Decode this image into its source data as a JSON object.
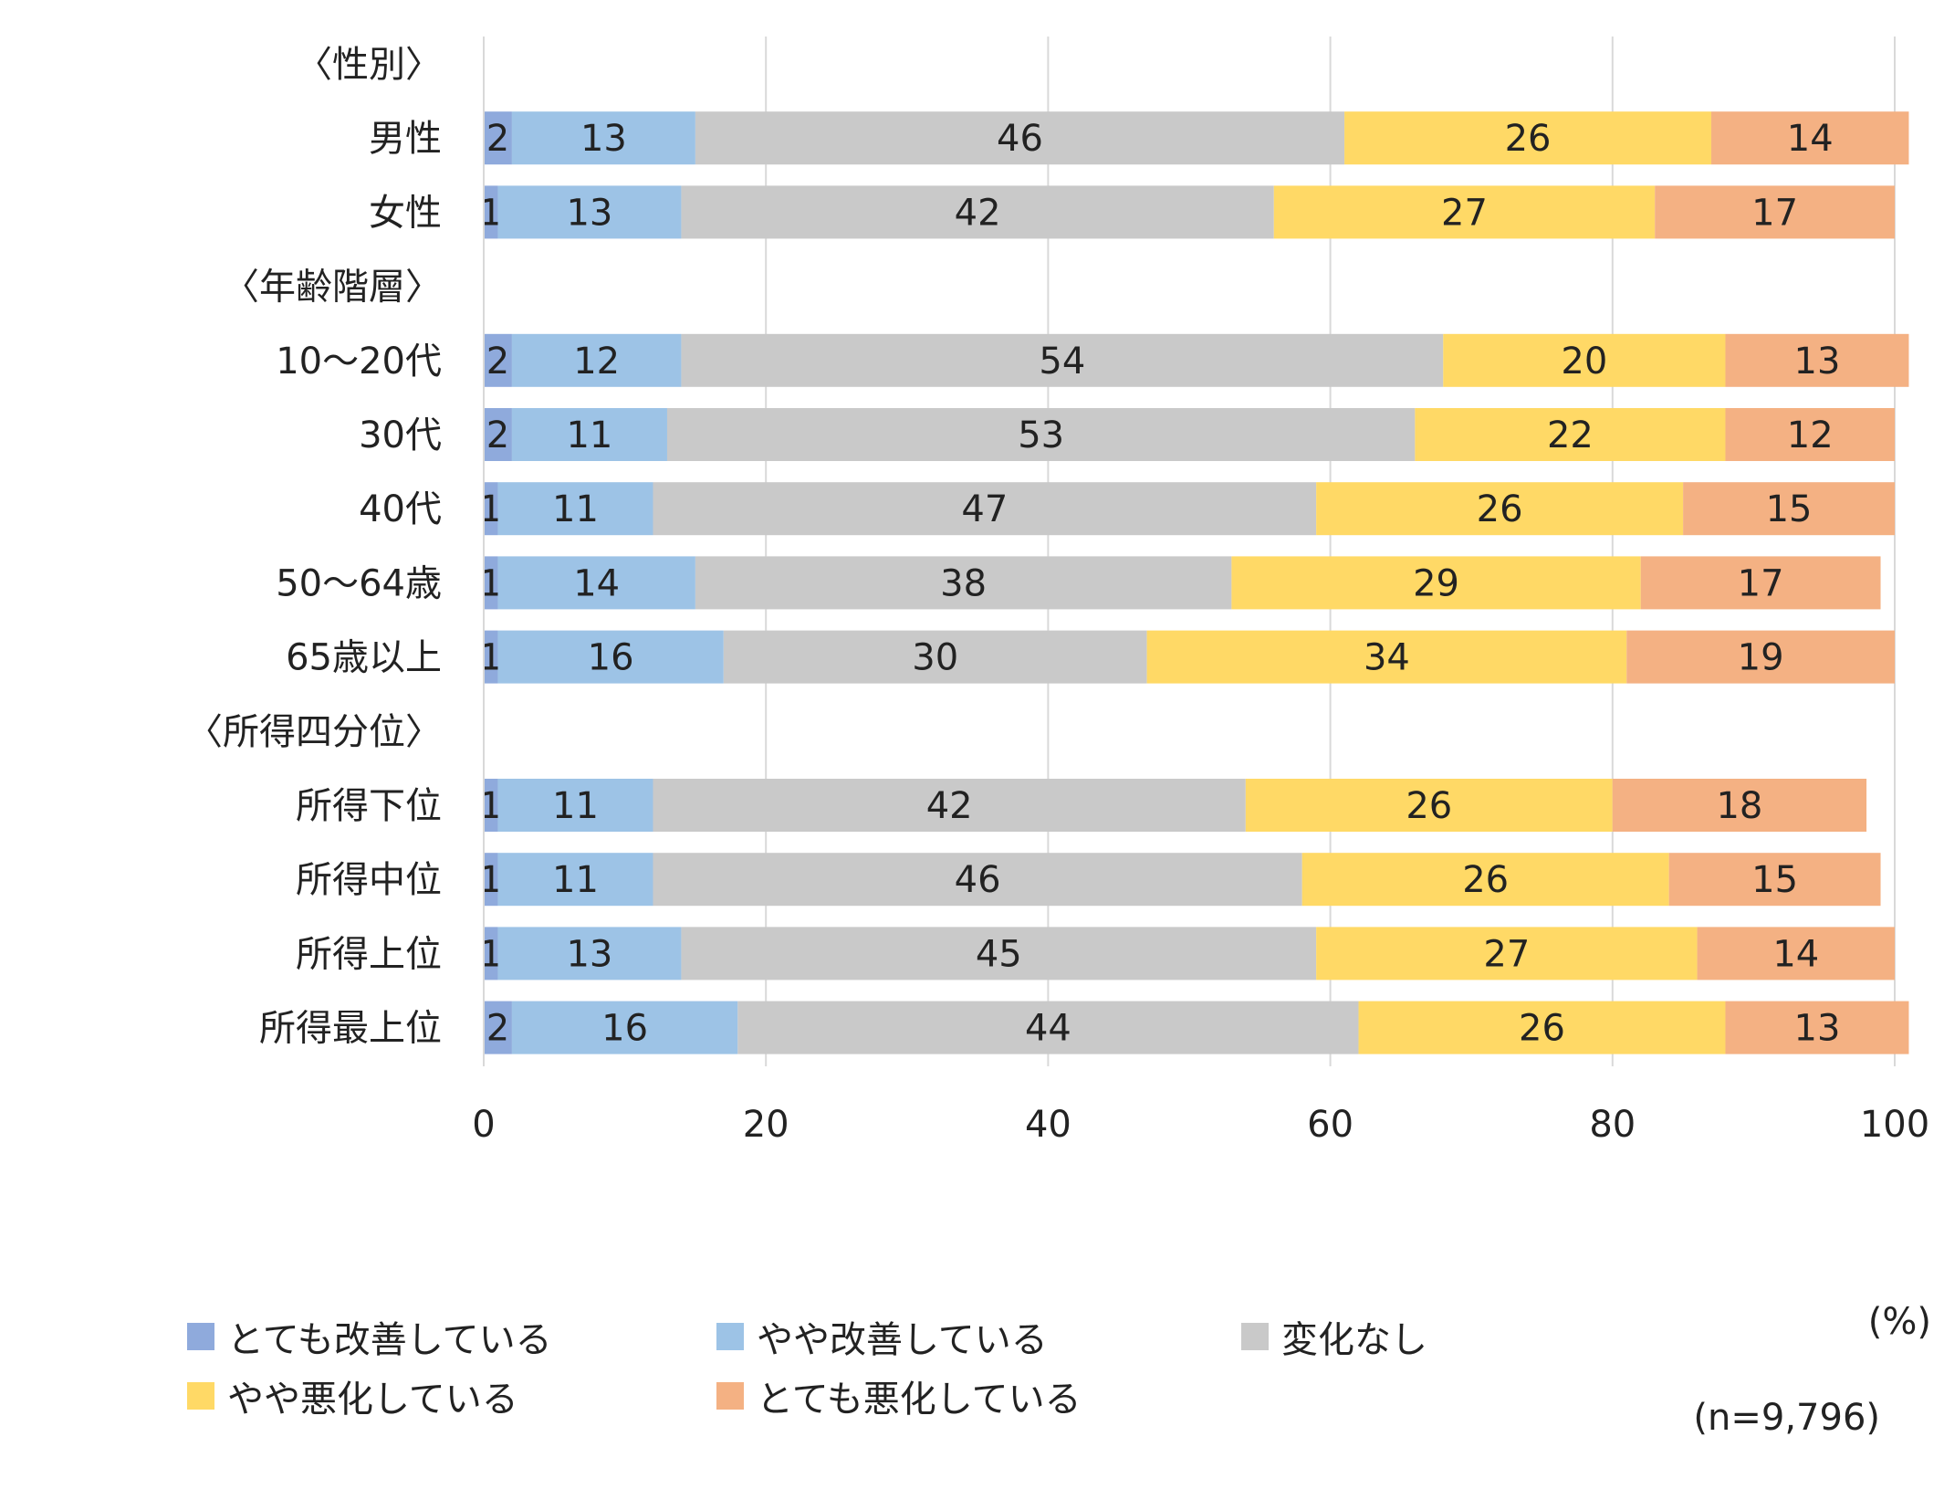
{
  "chart_data": {
    "type": "bar",
    "orientation": "horizontal",
    "stacked": true,
    "unit": "(%)",
    "sample_size": "(n=9,796)",
    "xlim": [
      0,
      100
    ],
    "x_ticks": [
      "0",
      "20",
      "40",
      "60",
      "80",
      "100"
    ],
    "grid": true,
    "legend_position": "bottom",
    "rows": [
      {
        "label": "〈性別〉",
        "is_header": true
      },
      {
        "label": "男性",
        "is_header": false,
        "values": [
          2,
          13,
          46,
          26,
          14
        ]
      },
      {
        "label": "女性",
        "is_header": false,
        "values": [
          1,
          13,
          42,
          27,
          17
        ]
      },
      {
        "label": "〈年齢階層〉",
        "is_header": true
      },
      {
        "label": "10〜20代",
        "is_header": false,
        "values": [
          2,
          12,
          54,
          20,
          13
        ]
      },
      {
        "label": "30代",
        "is_header": false,
        "values": [
          2,
          11,
          53,
          22,
          12
        ]
      },
      {
        "label": "40代",
        "is_header": false,
        "values": [
          1,
          11,
          47,
          26,
          15
        ]
      },
      {
        "label": "50〜64歳",
        "is_header": false,
        "values": [
          1,
          14,
          38,
          29,
          17
        ]
      },
      {
        "label": "65歳以上",
        "is_header": false,
        "values": [
          1,
          16,
          30,
          34,
          19
        ]
      },
      {
        "label": "〈所得四分位〉",
        "is_header": true
      },
      {
        "label": "所得下位",
        "is_header": false,
        "values": [
          1,
          11,
          42,
          26,
          18
        ]
      },
      {
        "label": "所得中位",
        "is_header": false,
        "values": [
          1,
          11,
          46,
          26,
          15
        ]
      },
      {
        "label": "所得上位",
        "is_header": false,
        "values": [
          1,
          13,
          45,
          27,
          14
        ]
      },
      {
        "label": "所得最上位",
        "is_header": false,
        "values": [
          2,
          16,
          44,
          26,
          13
        ]
      }
    ],
    "series": [
      {
        "name": "とても改善している",
        "color": "#8faadc"
      },
      {
        "name": "やや改善している",
        "color": "#9dc3e6"
      },
      {
        "name": "変化なし",
        "color": "#c9c9c9"
      },
      {
        "name": "やや悪化している",
        "color": "#ffd966"
      },
      {
        "name": "とても悪化している",
        "color": "#f4b183"
      }
    ]
  }
}
